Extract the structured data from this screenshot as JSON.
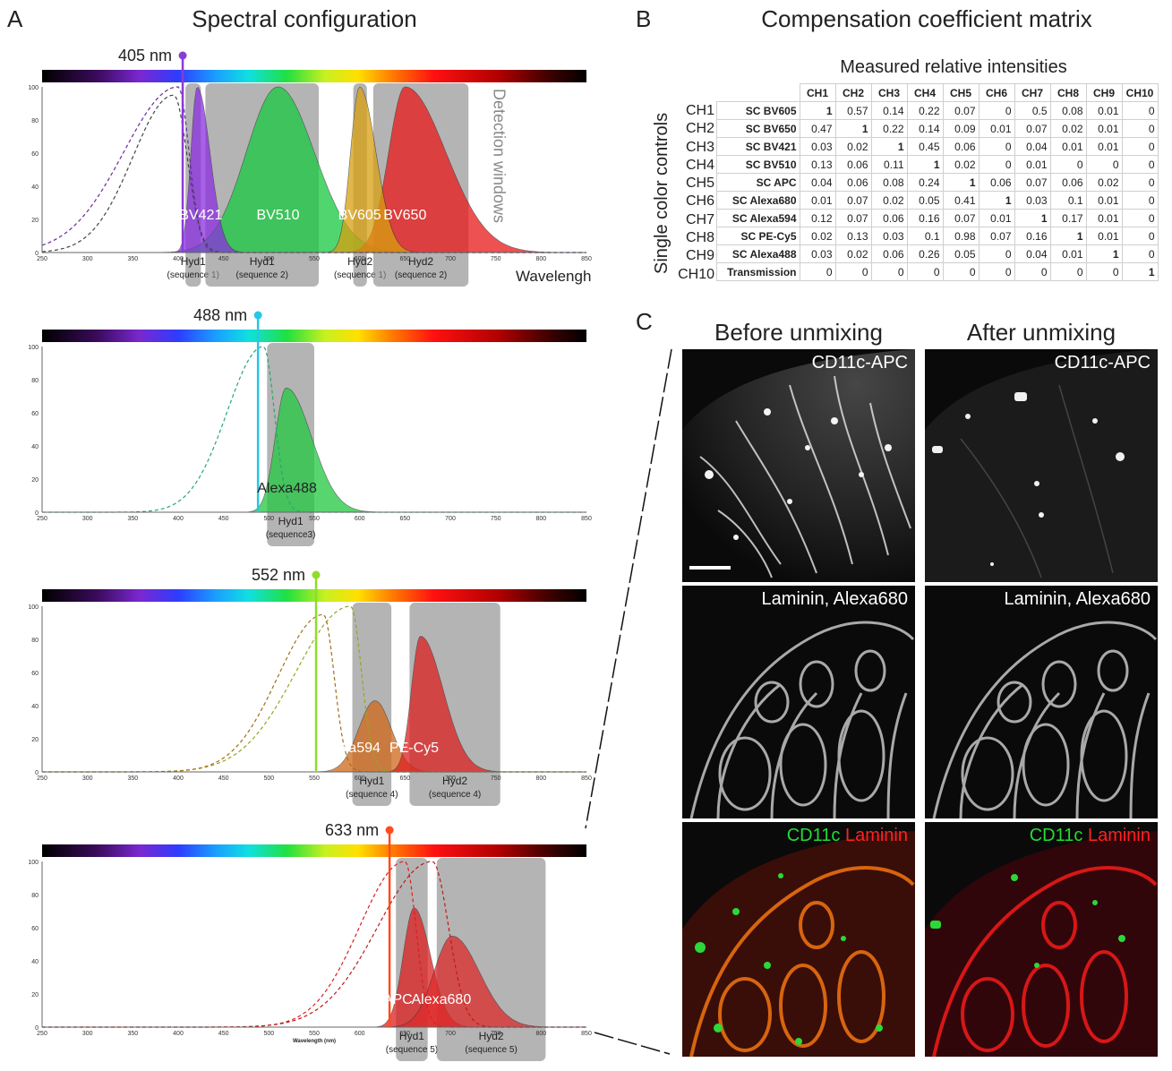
{
  "panelA": {
    "letter": "A",
    "title": "Spectral configuration",
    "axis_ticks": [
      "250",
      "300",
      "350",
      "400",
      "450",
      "500",
      "550",
      "600",
      "650",
      "700",
      "750",
      "800",
      "850"
    ],
    "y_ticks": [
      "0",
      "20",
      "40",
      "60",
      "80",
      "100"
    ],
    "xlabel_top": "Wavelengh",
    "xlabel_bottom": "Wavelength (nm)",
    "detection_label": "Detection windows",
    "subplots": [
      {
        "laser": "405 nm",
        "laser_color": "#8a3cd6",
        "dyes": [
          "BV421",
          "BV510",
          "BV605",
          "BV650"
        ],
        "windows": [
          {
            "name": "Hyd1",
            "seq": "(sequence 1)"
          },
          {
            "name": "Hyd1",
            "seq": "(sequence 2)"
          },
          {
            "name": "Hyd2",
            "seq": "(sequence 1)"
          },
          {
            "name": "Hyd2",
            "seq": "(sequence 2)"
          }
        ]
      },
      {
        "laser": "488 nm",
        "laser_color": "#27c7e6",
        "dyes": [
          "Alexa488"
        ],
        "windows": [
          {
            "name": "Hyd1",
            "seq": "(sequence3)"
          }
        ]
      },
      {
        "laser": "552 nm",
        "laser_color": "#8fdc2a",
        "dyes": [
          "Alexa594",
          "PE-Cy5"
        ],
        "windows": [
          {
            "name": "Hyd1",
            "seq": "(sequence 4)"
          },
          {
            "name": "Hyd2",
            "seq": "(sequence 4)"
          }
        ]
      },
      {
        "laser": "633 nm",
        "laser_color": "#ff4a1c",
        "dyes": [
          "APC",
          "Alexa680"
        ],
        "windows": [
          {
            "name": "Hyd1",
            "seq": "(sequence 5)"
          },
          {
            "name": "Hyd2",
            "seq": "(sequence 5)"
          }
        ]
      }
    ]
  },
  "panelB": {
    "letter": "B",
    "title": "Compensation coefficient matrix",
    "subtitle": "Measured relative intensities",
    "ylabel": "Single color controls",
    "columns": [
      "CH1",
      "CH2",
      "CH3",
      "CH4",
      "CH5",
      "CH6",
      "CH7",
      "CH8",
      "CH9",
      "CH10"
    ],
    "rows": [
      {
        "ch": "CH1",
        "name": "SC BV605",
        "values": [
          "1",
          "0.57",
          "0.14",
          "0.22",
          "0.07",
          "0",
          "0.5",
          "0.08",
          "0.01",
          "0"
        ]
      },
      {
        "ch": "CH2",
        "name": "SC BV650",
        "values": [
          "0.47",
          "1",
          "0.22",
          "0.14",
          "0.09",
          "0.01",
          "0.07",
          "0.02",
          "0.01",
          "0"
        ]
      },
      {
        "ch": "CH3",
        "name": "SC BV421",
        "values": [
          "0.03",
          "0.02",
          "1",
          "0.45",
          "0.06",
          "0",
          "0.04",
          "0.01",
          "0.01",
          "0"
        ]
      },
      {
        "ch": "CH4",
        "name": "SC BV510",
        "values": [
          "0.13",
          "0.06",
          "0.11",
          "1",
          "0.02",
          "0",
          "0.01",
          "0",
          "0",
          "0"
        ]
      },
      {
        "ch": "CH5",
        "name": "SC APC",
        "values": [
          "0.04",
          "0.06",
          "0.08",
          "0.24",
          "1",
          "0.06",
          "0.07",
          "0.06",
          "0.02",
          "0"
        ]
      },
      {
        "ch": "CH6",
        "name": "SC Alexa680",
        "values": [
          "0.01",
          "0.07",
          "0.02",
          "0.05",
          "0.41",
          "1",
          "0.03",
          "0.1",
          "0.01",
          "0"
        ]
      },
      {
        "ch": "CH7",
        "name": "SC Alexa594",
        "values": [
          "0.12",
          "0.07",
          "0.06",
          "0.16",
          "0.07",
          "0.01",
          "1",
          "0.17",
          "0.01",
          "0"
        ]
      },
      {
        "ch": "CH8",
        "name": "SC PE-Cy5",
        "values": [
          "0.02",
          "0.13",
          "0.03",
          "0.1",
          "0.98",
          "0.07",
          "0.16",
          "1",
          "0.01",
          "0"
        ]
      },
      {
        "ch": "CH9",
        "name": "SC Alexa488",
        "values": [
          "0.03",
          "0.02",
          "0.06",
          "0.26",
          "0.05",
          "0",
          "0.04",
          "0.01",
          "1",
          "0"
        ]
      },
      {
        "ch": "CH10",
        "name": "Transmission",
        "values": [
          "0",
          "0",
          "0",
          "0",
          "0",
          "0",
          "0",
          "0",
          "0",
          "1"
        ]
      }
    ]
  },
  "panelC": {
    "letter": "C",
    "col_before": "Before unmixing",
    "col_after": "After unmixing",
    "row1": "CD11c-APC",
    "row2": "Laminin, Alexa680",
    "row3_green": "CD11c",
    "row3_red": "Laminin",
    "green": "#22dd33",
    "red": "#ff2222"
  }
}
